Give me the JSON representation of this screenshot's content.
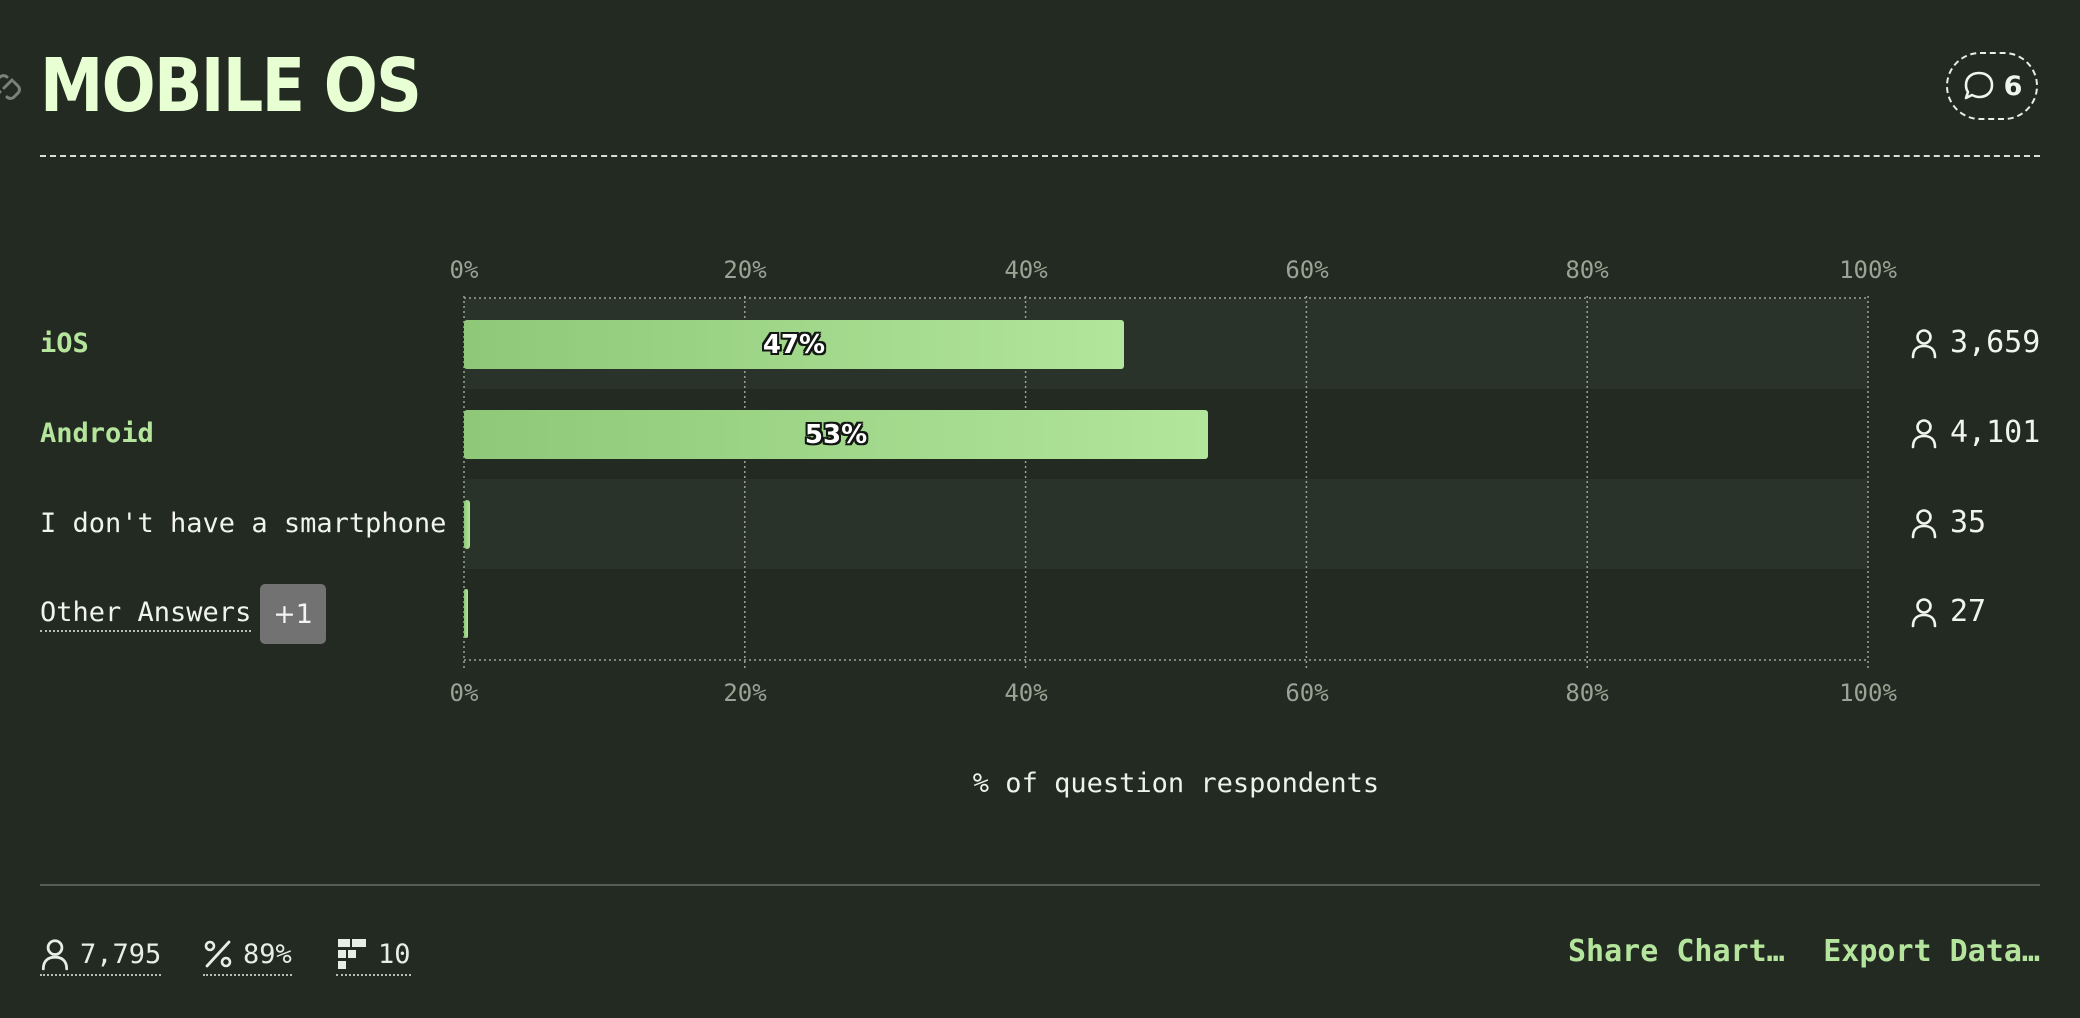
{
  "title": "MOBILE OS",
  "comments_count": "6",
  "chart_data": {
    "type": "bar",
    "orientation": "horizontal",
    "categories": [
      "iOS",
      "Android",
      "I don't have a smartphone",
      "Other Answers"
    ],
    "values": [
      47,
      53,
      0.4,
      0.3
    ],
    "value_labels": [
      "47%",
      "53%",
      "",
      ""
    ],
    "respondents": [
      "3,659",
      "4,101",
      "35",
      "27"
    ],
    "xlim": [
      0,
      100
    ],
    "x_ticks": [
      "0%",
      "20%",
      "40%",
      "60%",
      "80%",
      "100%"
    ],
    "xlabel": "% of question respondents",
    "other_answers_badge": "+1",
    "colors": {
      "bar_start": "#8ec878",
      "bar_end": "#b2e69b",
      "highlight_label": "#b5e59c"
    }
  },
  "footer": {
    "total_respondents": "7,795",
    "percent_answered": "89%",
    "options_count": "10",
    "share_label": "Share Chart…",
    "export_label": "Export Data…"
  }
}
